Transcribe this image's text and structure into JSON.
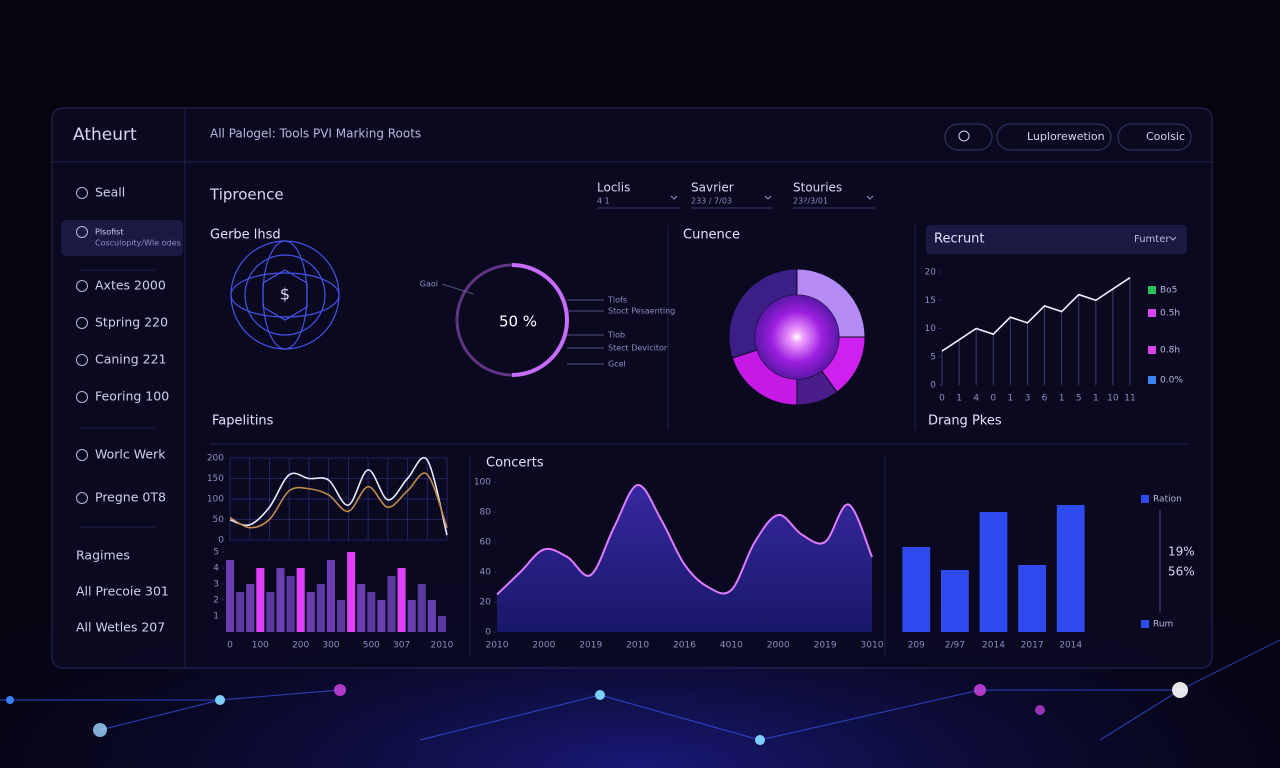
{
  "header": {
    "brand": "Atheurt",
    "breadcrumb": "All Palogel: Tools PVI Marking Roots",
    "buttons": [
      "Luplorewetion",
      "Coolsic"
    ]
  },
  "sidebar": {
    "items": [
      "Seall",
      "Plsofist",
      "Axtes 2000",
      "Stpring 220",
      "Caning 221",
      "Feoring 100",
      "Worlc Werk",
      "Pregne 0T8",
      "Ragimes",
      "All Precoie 301",
      "All Wetles 207"
    ],
    "subtitle": "Cosculopity/Wle odes"
  },
  "overview": {
    "title": "Tiproence",
    "filters": [
      {
        "label": "Loclis",
        "value": "4 1"
      },
      {
        "label": "Savrier",
        "value": "233 / 7/03"
      },
      {
        "label": "Stouries",
        "value": "23?/3/01"
      }
    ]
  },
  "globe": {
    "title": "Gerbe lhsd",
    "symbol": "$"
  },
  "chart_data": [
    {
      "type": "gauge",
      "values": [
        50
      ],
      "value_labels": [
        "50 %"
      ],
      "ylim": [
        0,
        100
      ],
      "color": "#c86bff",
      "annotations": [
        "Gaol",
        "Tlofs",
        "Stoct Pesaenting",
        "Tlob",
        "Stect Devicitor",
        "Gcel"
      ]
    },
    {
      "type": "pie",
      "title": "Cunence",
      "values": [
        25,
        15,
        10,
        20,
        30
      ],
      "colors": [
        "#b58cf5",
        "#d020f0",
        "#4a1d8a",
        "#c51ae6",
        "#3b1f86"
      ]
    },
    {
      "type": "line",
      "title": "Recrunt",
      "dropdown": "Fumter",
      "categories": [
        "0",
        "1",
        "4",
        "0",
        "1",
        "3",
        "6",
        "1",
        "5",
        "1",
        "10",
        "11"
      ],
      "series": [
        {
          "values": [
            6,
            8,
            10,
            9,
            12,
            11,
            14,
            13,
            16,
            15,
            17,
            19
          ],
          "color": "#f2efff"
        }
      ],
      "ylim": [
        0,
        20
      ],
      "yticks": [
        0,
        5,
        10,
        15,
        20
      ],
      "legend": [
        {
          "label": "Bo5",
          "color": "#22c55e"
        },
        {
          "label": "0.5h",
          "color": "#d946ef"
        },
        {
          "label": "0.8h",
          "color": "#d946ef"
        },
        {
          "label": "0.0%",
          "color": "#3b82f6"
        }
      ]
    },
    {
      "type": "line",
      "title": "Fapelitins",
      "smooth": true,
      "grid": true,
      "categories": [
        null,
        null,
        null,
        null,
        null,
        null,
        null,
        null,
        null,
        null,
        null,
        null
      ],
      "series": [
        {
          "values": [
            49,
            37,
            80,
            159,
            150,
            146,
            85,
            171,
            98,
            150,
            195,
            12
          ],
          "color": "#e8ecff"
        },
        {
          "values": [
            55,
            30,
            50,
            120,
            125,
            110,
            70,
            130,
            80,
            120,
            160,
            30
          ],
          "color": "#c08a4a"
        }
      ],
      "ylim": [
        0,
        200
      ],
      "yticks": [
        0,
        50,
        100,
        150,
        200
      ]
    },
    {
      "type": "bar",
      "categories": [
        "0",
        null,
        null,
        "100",
        null,
        null,
        null,
        "200",
        null,
        null,
        "300",
        null,
        null,
        null,
        "500",
        null,
        null,
        "307",
        null,
        null,
        null,
        "2010"
      ],
      "values": [
        4.5,
        2.5,
        3,
        4,
        2.5,
        4,
        3.5,
        4,
        2.5,
        3,
        4.5,
        2,
        5,
        3,
        2.5,
        2,
        3.5,
        4,
        2,
        3,
        2,
        1
      ],
      "colors": [
        "#6b3fb0",
        "#5b3aa0",
        "#6b3fb0",
        "#e040fb",
        "#5b3aa0",
        "#6b3fb0",
        "#5b3aa0",
        "#e040fb",
        "#6b3fb0",
        "#5b3aa0",
        "#6b3fb0",
        "#5b3aa0",
        "#e040fb",
        "#6b3fb0",
        "#5b3aa0",
        "#6b3fb0",
        "#5b3aa0",
        "#e040fb",
        "#6b3fb0",
        "#5b3aa0",
        "#6b3fb0",
        "#5b3aa0"
      ],
      "ylim": [
        0,
        5
      ],
      "yticks": [
        1,
        2,
        3,
        4,
        5
      ]
    },
    {
      "type": "area",
      "title": "Concerts",
      "smooth": true,
      "categories": [
        "2010",
        null,
        "2000",
        null,
        "2019",
        null,
        "2010",
        null,
        "2016",
        null,
        "4010",
        null,
        "2000",
        null,
        "2019",
        null,
        "3010"
      ],
      "values": [
        25,
        40,
        55,
        50,
        38,
        70,
        98,
        75,
        45,
        30,
        28,
        60,
        78,
        65,
        60,
        85,
        50
      ],
      "color": "#e07bff",
      "ylim": [
        0,
        100
      ],
      "yticks": [
        0,
        20,
        40,
        60,
        80,
        100
      ]
    },
    {
      "type": "bar",
      "title": "Drang Pkes",
      "categories": [
        "209",
        "2/97",
        "2014",
        "2017",
        "2014"
      ],
      "values": [
        85,
        62,
        120,
        67,
        127
      ],
      "color": "#2f4bef",
      "ylim": [
        0,
        142
      ],
      "legend": [
        {
          "label": "Ration",
          "color": "#2f4bef"
        },
        {
          "label": "Rum",
          "color": "#2f4bef"
        }
      ],
      "annotations": [
        "19%",
        "56%"
      ]
    }
  ]
}
